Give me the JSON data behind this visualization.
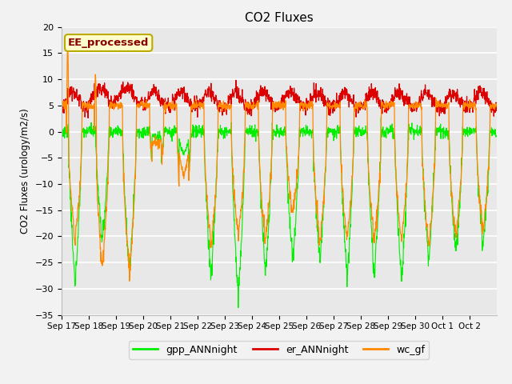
{
  "title": "CO2 Fluxes",
  "ylabel": "CO2 Fluxes (urology/m2/s)",
  "ylim": [
    -35,
    20
  ],
  "yticks": [
    -35,
    -30,
    -25,
    -20,
    -15,
    -10,
    -5,
    0,
    5,
    10,
    15,
    20
  ],
  "fig_color": "#f2f2f2",
  "plot_bg_color": "#e8e8e8",
  "gpp_color": "#00ee00",
  "er_color": "#dd0000",
  "wc_color": "#ff8800",
  "legend_labels": [
    "gpp_ANNnight",
    "er_ANNnight",
    "wc_gf"
  ],
  "x_tick_labels": [
    "Sep 17",
    "Sep 18",
    "Sep 19",
    "Sep 20",
    "Sep 21",
    "Sep 22",
    "Sep 23",
    "Sep 24",
    "Sep 25",
    "Sep 26",
    "Sep 27",
    "Sep 28",
    "Sep 29",
    "Sep 30",
    "Oct 1",
    "Oct 2"
  ],
  "annotation_text": "EE_processed",
  "annotation_fg": "#880000",
  "annotation_bg": "#ffffcc",
  "annotation_border": "#bbaa00",
  "n_days": 16,
  "ppd": 96
}
